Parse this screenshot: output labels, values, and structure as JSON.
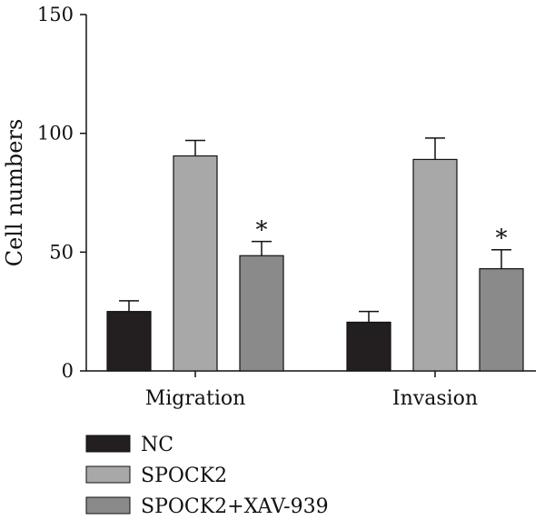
{
  "chart_data": {
    "type": "bar",
    "title": "",
    "xlabel": "",
    "ylabel": "Cell numbers",
    "ylim": [
      0,
      150
    ],
    "yticks": [
      "0",
      "50",
      "100",
      "150"
    ],
    "categories": [
      "Migration",
      "Invasion"
    ],
    "series": [
      {
        "name": "NC",
        "color": "#231f20",
        "values": [
          25,
          20.5
        ],
        "errors": [
          4.5,
          4.5
        ],
        "sig": [
          "",
          ""
        ]
      },
      {
        "name": "SPOCK2",
        "color": "#a8a8a8",
        "values": [
          90.5,
          89
        ],
        "errors": [
          6.5,
          9
        ],
        "sig": [
          "",
          ""
        ]
      },
      {
        "name": "SPOCK2+XAV-939",
        "color": "#8a8a8a",
        "values": [
          48.5,
          43
        ],
        "errors": [
          6,
          8
        ],
        "sig": [
          "*",
          "*"
        ]
      }
    ],
    "grid": false,
    "legend_position": "bottom-left"
  }
}
